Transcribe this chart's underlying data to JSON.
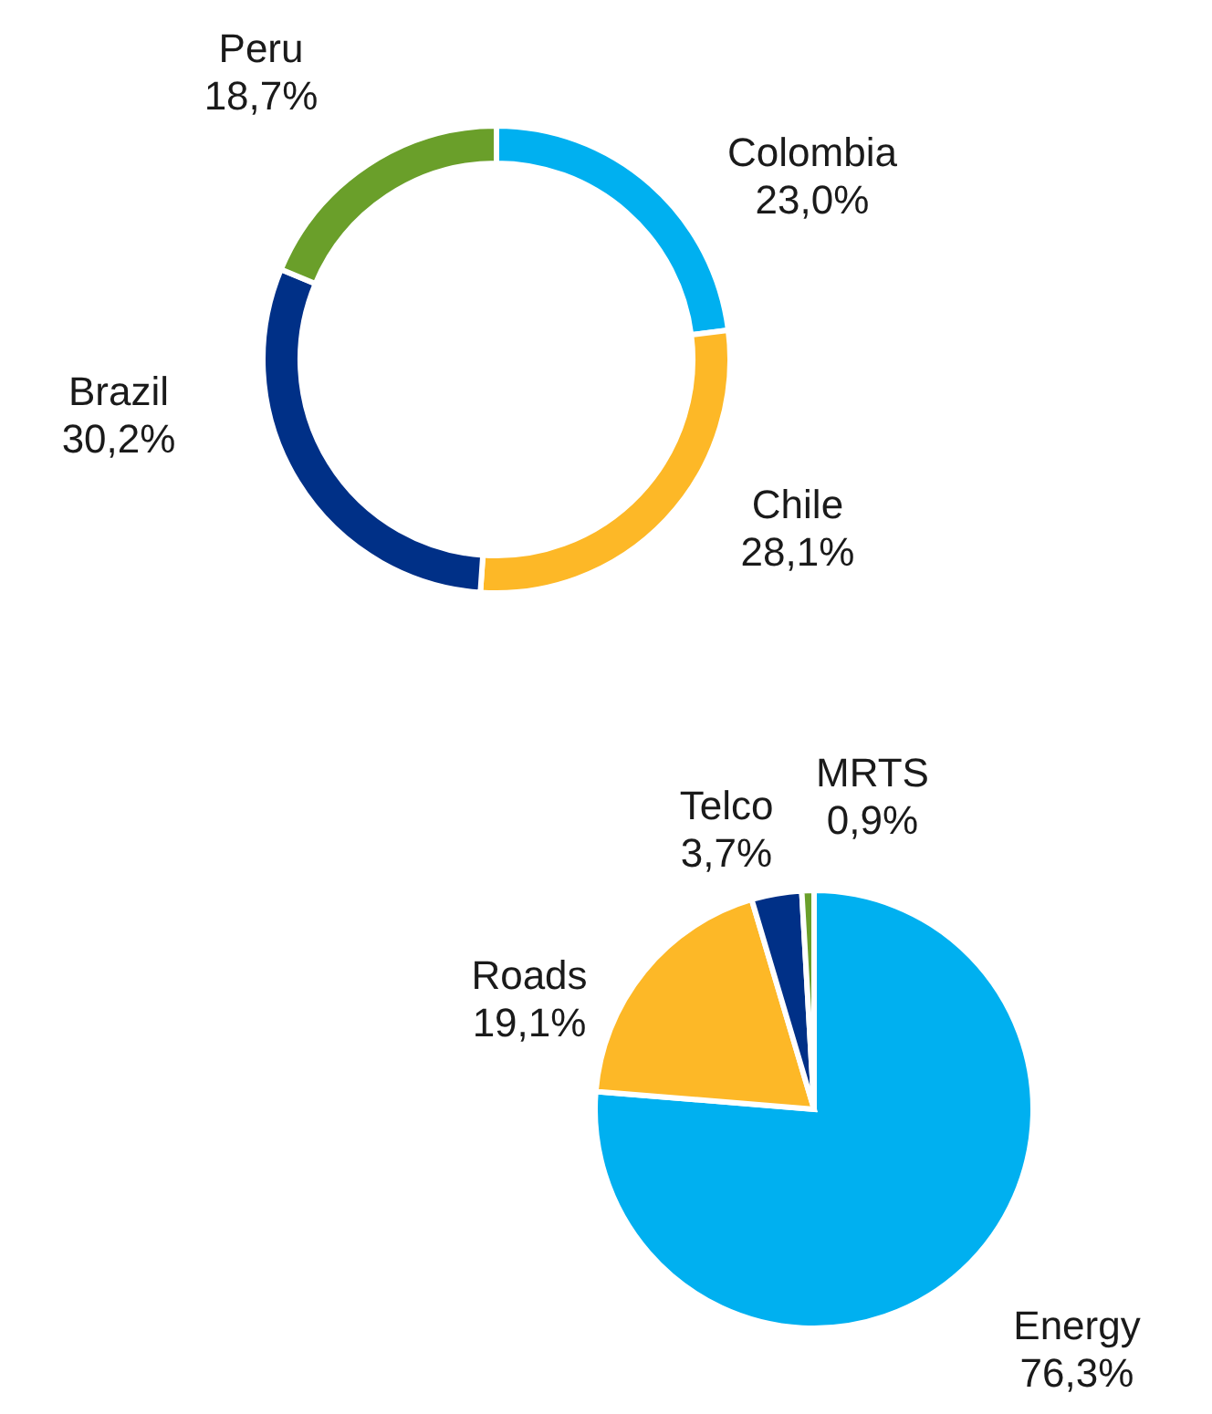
{
  "chart_data": [
    {
      "type": "donut",
      "categories": [
        "Colombia",
        "Chile",
        "Brazil",
        "Peru"
      ],
      "values": [
        23.0,
        28.1,
        30.2,
        18.7
      ],
      "value_labels": [
        "23,0%",
        "28,1%",
        "30,2%",
        "18,7%"
      ],
      "colors": [
        "#00b0f0",
        "#fdb827",
        "#003087",
        "#6a9f2a"
      ],
      "legend": false
    },
    {
      "type": "pie",
      "categories": [
        "Energy",
        "Roads",
        "Telco",
        "MRTS"
      ],
      "values": [
        76.3,
        19.1,
        3.7,
        0.9
      ],
      "value_labels": [
        "76,3%",
        "19,1%",
        "3,7%",
        "0,9%"
      ],
      "colors": [
        "#00b0f0",
        "#fdb827",
        "#003087",
        "#6a9f2a"
      ],
      "legend": false
    }
  ]
}
